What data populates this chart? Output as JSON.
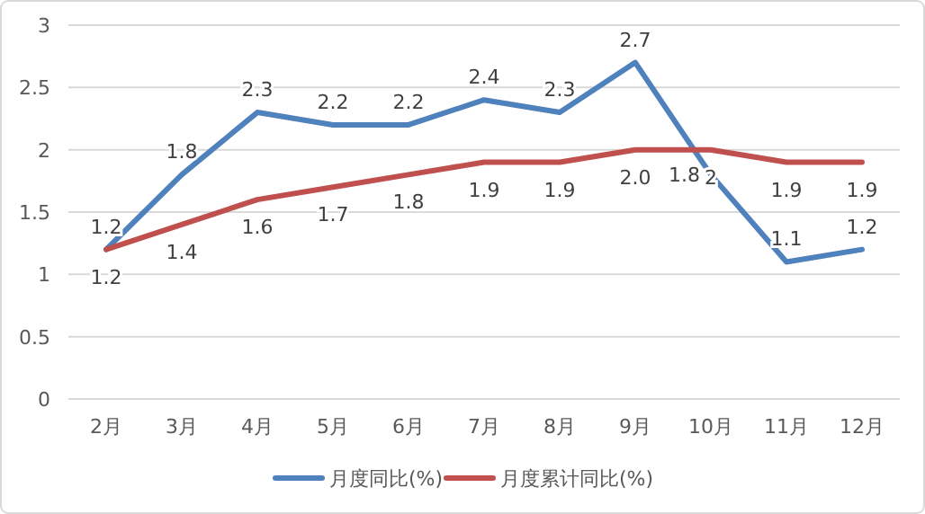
{
  "chart_data": {
    "type": "line",
    "categories": [
      "2月",
      "3月",
      "4月",
      "5月",
      "6月",
      "7月",
      "8月",
      "9月",
      "10月",
      "11月",
      "12月"
    ],
    "ylim": [
      0,
      3
    ],
    "yticks": [
      0,
      0.5,
      1,
      1.5,
      2,
      2.5,
      3
    ],
    "grid": "y",
    "legend": "bottom",
    "marker": "none",
    "line_style": "solid",
    "series": [
      {
        "name": "月度同比(%)",
        "color": "#4f81bd",
        "values": [
          1.2,
          1.8,
          2.3,
          2.2,
          2.2,
          2.4,
          2.3,
          2.7,
          1.8,
          1.1,
          1.2
        ],
        "value_labels": [
          "1.2",
          "1.8",
          "2.3",
          "2.2",
          "2.2",
          "2.4",
          "2.3",
          "2.7",
          "1.8",
          "1.1",
          "1.2"
        ]
      },
      {
        "name": "月度累计同比(%)",
        "color": "#c0504d",
        "values": [
          1.2,
          1.4,
          1.6,
          1.7,
          1.8,
          1.9,
          1.9,
          2.0,
          2.0,
          1.9,
          1.9
        ],
        "value_labels": [
          "1.2",
          "1.4",
          "1.6",
          "1.7",
          "1.8",
          "1.9",
          "1.9",
          "2.0",
          "2",
          "1.9",
          "1.9"
        ]
      }
    ]
  }
}
